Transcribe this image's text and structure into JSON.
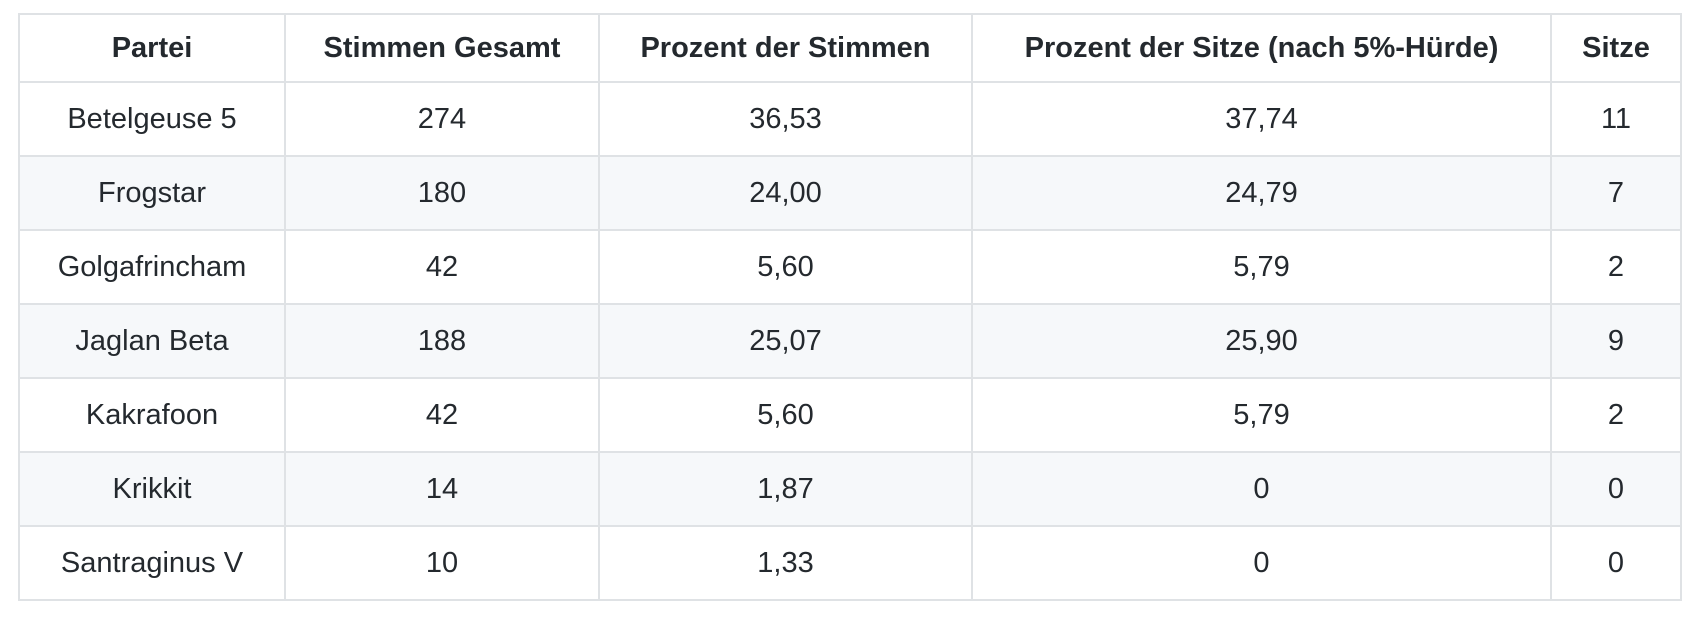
{
  "chart_data": {
    "type": "table",
    "columns": [
      "Partei",
      "Stimmen Gesamt",
      "Prozent der Stimmen",
      "Prozent der Sitze (nach 5%-Hürde)",
      "Sitze"
    ],
    "column_keys": [
      "partei",
      "stimmen_gesamt",
      "prozent_der_stimmen",
      "prozent_der_sitze",
      "sitze"
    ],
    "rows": [
      [
        "Betelgeuse 5",
        "274",
        "36,53",
        "37,74",
        "11"
      ],
      [
        "Frogstar",
        "180",
        "24,00",
        "24,79",
        "7"
      ],
      [
        "Golgafrincham",
        "42",
        "5,60",
        "5,79",
        "2"
      ],
      [
        "Jaglan Beta",
        "188",
        "25,07",
        "25,90",
        "9"
      ],
      [
        "Kakrafoon",
        "42",
        "5,60",
        "5,79",
        "2"
      ],
      [
        "Krikkit",
        "14",
        "1,87",
        "0",
        "0"
      ],
      [
        "Santraginus V",
        "10",
        "1,33",
        "0",
        "0"
      ]
    ],
    "layout": {
      "striped_rows": "even",
      "text_align": "center",
      "header_bold": true,
      "grid": "all-cell-borders"
    }
  },
  "colors": {
    "stripe": "#f6f8fa",
    "border": "#dfe2e5",
    "text": "#24292e",
    "page_background": "#ffffff"
  }
}
